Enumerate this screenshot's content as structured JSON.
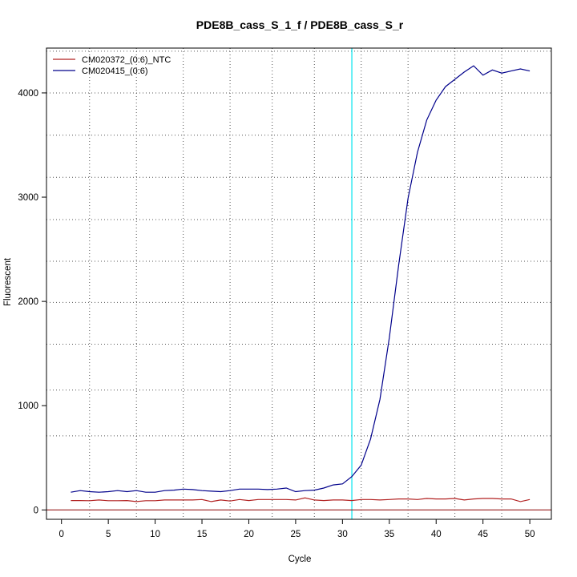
{
  "chart_data": {
    "type": "line",
    "title": "PDE8B_cass_S_1_f / PDE8B_cass_S_r",
    "xlabel": "Cycle",
    "ylabel": "Fluorescent",
    "xlim": [
      -1.6,
      52.3
    ],
    "ylim": [
      -90,
      4430
    ],
    "xticks": [
      0,
      5,
      10,
      15,
      20,
      25,
      30,
      35,
      40,
      45,
      50
    ],
    "yticks": [
      0,
      1000,
      2000,
      3000,
      4000
    ],
    "grid": true,
    "grid_x_dotted": [
      3,
      8,
      13,
      18,
      22.5,
      27,
      32,
      37,
      42,
      47
    ],
    "grid_y_dotted": [
      710,
      1150,
      1590,
      1990,
      2385,
      2785,
      3190,
      3595,
      4000,
      4400
    ],
    "threshold_cycle": 31,
    "threshold_color": "#00e5ee",
    "baseline_value": 0,
    "baseline_color": "#8b0000",
    "legend_position": "top-left",
    "x": [
      1,
      2,
      3,
      4,
      5,
      6,
      7,
      8,
      9,
      10,
      11,
      12,
      13,
      14,
      15,
      16,
      17,
      18,
      19,
      20,
      21,
      22,
      23,
      24,
      25,
      26,
      27,
      28,
      29,
      30,
      31,
      32,
      33,
      34,
      35,
      36,
      37,
      38,
      39,
      40,
      41,
      42,
      43,
      44,
      45,
      46,
      47,
      48,
      49,
      50
    ],
    "series": [
      {
        "name": "CM020372_(0:6)_NTC",
        "color": "#b22222",
        "values": [
          90,
          90,
          88,
          95,
          88,
          88,
          90,
          80,
          88,
          88,
          95,
          95,
          95,
          95,
          100,
          80,
          95,
          85,
          100,
          90,
          100,
          100,
          100,
          100,
          95,
          115,
          95,
          90,
          95,
          95,
          90,
          100,
          100,
          95,
          100,
          105,
          105,
          100,
          110,
          105,
          105,
          110,
          95,
          105,
          110,
          110,
          105,
          105,
          80,
          100
        ]
      },
      {
        "name": "CM020415_(0:6)",
        "color": "#00008b",
        "values": [
          170,
          185,
          175,
          170,
          175,
          185,
          175,
          185,
          170,
          170,
          185,
          190,
          200,
          195,
          185,
          180,
          175,
          185,
          200,
          200,
          200,
          195,
          200,
          210,
          175,
          185,
          190,
          210,
          240,
          250,
          320,
          430,
          680,
          1060,
          1650,
          2350,
          2990,
          3430,
          3740,
          3930,
          4060,
          4130,
          4200,
          4260,
          4170,
          4220,
          4190,
          4210,
          4230,
          4210
        ]
      }
    ]
  }
}
